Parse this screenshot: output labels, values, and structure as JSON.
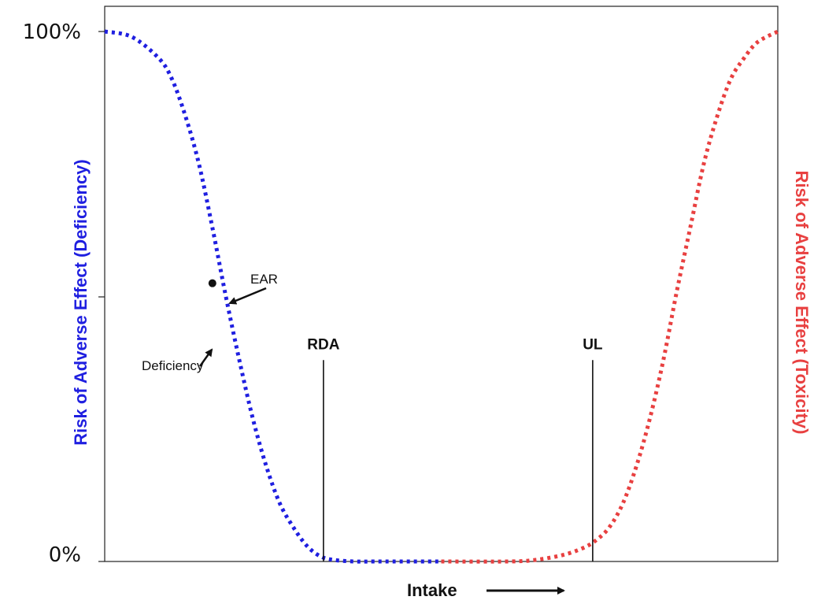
{
  "chart_data": {
    "type": "line",
    "title": "",
    "xlabel": "Intake",
    "ylabel_left": "Risk of Adverse Effect (Deficiency)",
    "ylabel_right": "Risk of Adverse Effect (Toxicity)",
    "y_tick_labels": [
      "100%",
      "0%"
    ],
    "ylim": [
      0,
      100
    ],
    "xlim": [
      0,
      100
    ],
    "grid": false,
    "series": [
      {
        "name": "Deficiency",
        "color": "#1f1fe0",
        "x": [
          0,
          4,
          8,
          10,
          12,
          14,
          16,
          18,
          20,
          22,
          24,
          26,
          28,
          30,
          32,
          34,
          37,
          40,
          44,
          50
        ],
        "y": [
          100,
          99,
          95,
          91,
          84,
          75,
          63,
          50,
          38,
          27,
          18,
          11,
          6.5,
          3,
          1,
          0.3,
          0,
          0,
          0,
          0
        ]
      },
      {
        "name": "Toxicity",
        "color": "#e84040",
        "x": [
          50,
          60,
          64,
          68,
          71,
          73,
          75,
          77,
          79,
          81,
          83,
          85,
          87,
          89,
          91,
          93,
          95,
          97,
          100
        ],
        "y": [
          0,
          0,
          0.3,
          1.2,
          2.5,
          4,
          6.5,
          11,
          18,
          27,
          38,
          51,
          63,
          75,
          84,
          91,
          95,
          98,
          100
        ]
      }
    ],
    "points": [
      {
        "label": "EAR",
        "x": 16,
        "y": 52.5
      }
    ],
    "markers": [
      {
        "label": "RDA",
        "x": 32.5,
        "y_top": 38
      },
      {
        "label": "UL",
        "x": 72.5,
        "y_top": 38
      }
    ],
    "annotations": [
      {
        "text": "EAR",
        "target": "EAR"
      },
      {
        "text": "Deficiency",
        "target": "deficiency-curve"
      }
    ],
    "x_arrow": true
  }
}
